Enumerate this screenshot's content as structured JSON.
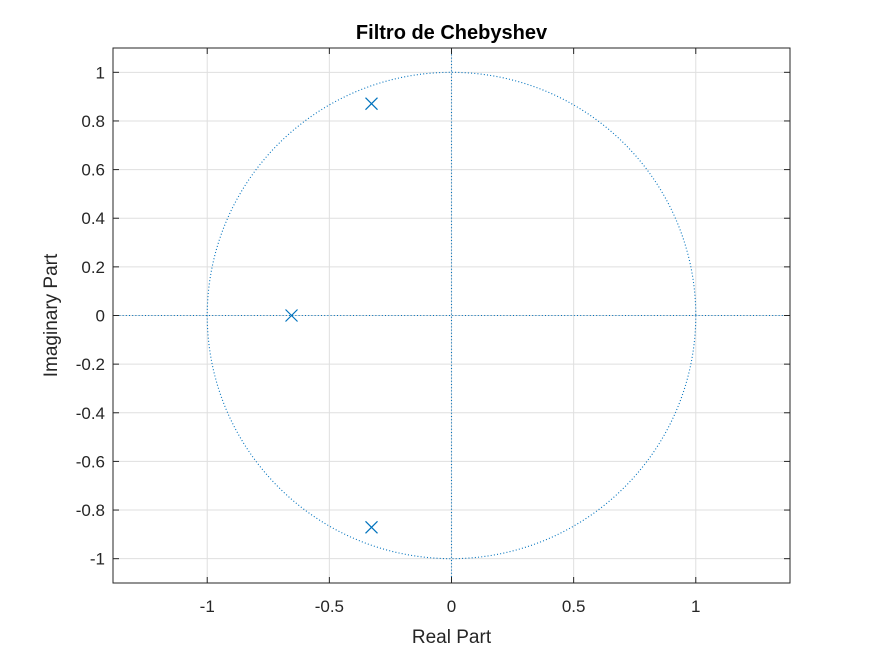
{
  "chart_data": {
    "type": "scatter",
    "title": "Filtro de Chebyshev",
    "xlabel": "Real Part",
    "ylabel": "Imaginary Part",
    "xlim": [
      -1.3857,
      1.3857
    ],
    "ylim": [
      -1.1,
      1.1
    ],
    "grid": true,
    "x_ticks": [
      -1,
      -0.5,
      0,
      0.5,
      1
    ],
    "x_tick_labels": [
      "-1",
      "-0.5",
      "0",
      "0.5",
      "1"
    ],
    "y_ticks": [
      1,
      0.8,
      0.6,
      0.4,
      0.2,
      0,
      -0.2,
      -0.4,
      -0.6,
      -0.8,
      -1
    ],
    "y_tick_labels": [
      "1",
      "0.8",
      "0.6",
      "0.4",
      "0.2",
      "0",
      "-0.2",
      "-0.4",
      "-0.6",
      "-0.8",
      "-1"
    ],
    "unit_circle": {
      "radius": 1,
      "style": "dotted"
    },
    "poles": [
      {
        "re": -0.3275,
        "im": 0.8711
      },
      {
        "re": -0.6549,
        "im": 0.0
      },
      {
        "re": -0.3275,
        "im": -0.8711
      }
    ],
    "colors": {
      "marker": "#0072bd",
      "reference": "#0072bd",
      "grid": "#dfdfdf",
      "axes": "#262626"
    }
  }
}
